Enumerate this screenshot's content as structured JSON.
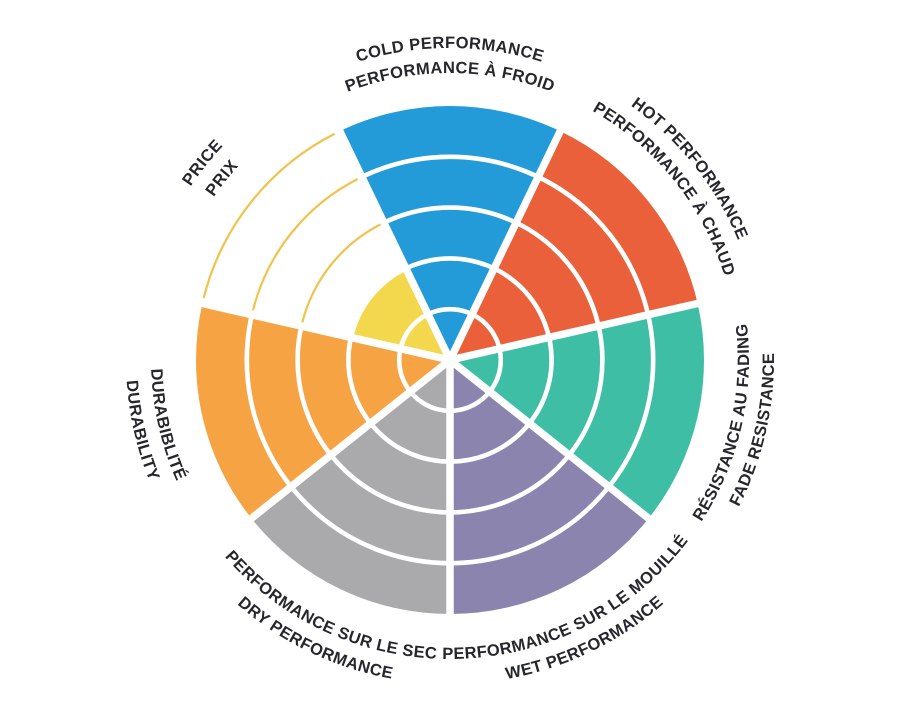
{
  "background": "#FFFFFF",
  "chart_data": {
    "type": "pie",
    "subtype": "radial-rating-wheel",
    "description": "Seven-sector performance wheel; each sector is a wedge filled outward in proportion to its rating out of 5 concentric rings. Unfilled rings are shown as thin outline arcs in the sector color.",
    "rings": 5,
    "start": "top",
    "direction": "clockwise",
    "grid": "white ring dividers and white radial separators",
    "legend_position": "labels curved around wheel, English outer line / French inner line",
    "label_color": "#25272D",
    "separator_color": "#FFFFFF",
    "sectors": [
      {
        "id": "cold",
        "label_en": "COLD PERFORMANCE",
        "label_fr": "PERFORMANCE À FROID",
        "value": 5,
        "max": 5,
        "color": "#229BD8"
      },
      {
        "id": "hot",
        "label_en": "HOT PERFORMANCE",
        "label_fr": "PERFORMANCE À CHAUD",
        "value": 5,
        "max": 5,
        "color": "#E9603A"
      },
      {
        "id": "fade",
        "label_en": "FADE RESISTANCE",
        "label_fr": "RÉSISTANCE AU FADING",
        "value": 5,
        "max": 5,
        "color": "#3FBEA6"
      },
      {
        "id": "wet",
        "label_en": "WET PERFORMANCE",
        "label_fr": "PERFORMANCE SUR LE MOUILLÉ",
        "value": 5,
        "max": 5,
        "color": "#8A84AE"
      },
      {
        "id": "dry",
        "label_en": "DRY PERFORMANCE",
        "label_fr": "PERFORMANCE SUR LE SEC",
        "value": 5,
        "max": 5,
        "color": "#AAAAAD"
      },
      {
        "id": "durability",
        "label_en": "DURABILITY",
        "label_fr": "DURABIBLITÉ",
        "value": 5,
        "max": 5,
        "color": "#F6A443"
      },
      {
        "id": "price",
        "label_en": "PRICE",
        "label_fr": "PRIX",
        "value": 2,
        "max": 5,
        "color": "#F3D74C",
        "unfilled_ring_outline_color": "#EFC34C"
      }
    ]
  }
}
